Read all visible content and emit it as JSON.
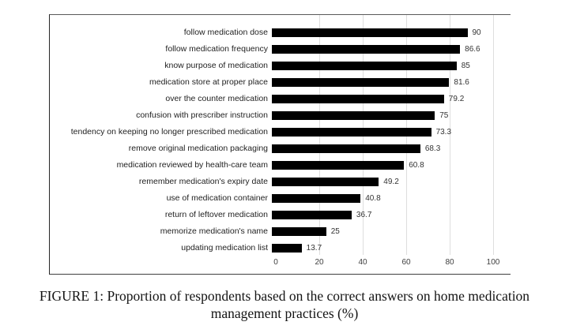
{
  "figure": {
    "caption_line1": "FIGURE 1: Proportion of respondents based on the correct answers on home medication",
    "caption_line2": "management practices (%)"
  },
  "chart_data": {
    "type": "bar",
    "orientation": "horizontal",
    "title": "",
    "xlabel": "",
    "ylabel": "",
    "categories": [
      "follow medication dose",
      "follow medication frequency",
      "know purpose of medication",
      "medication store at proper place",
      "over the counter medication",
      "confusion with prescriber instruction",
      "tendency on keeping no longer prescribed medication",
      "remove original medication packaging",
      "medication reviewed by health-care team",
      "remember medication's expiry date",
      "use of medication container",
      "return of leftover medication",
      "memorize medication's name",
      "updating medication list"
    ],
    "values": [
      90,
      86.6,
      85,
      81.6,
      79.2,
      75,
      73.3,
      68.3,
      60.8,
      49.2,
      40.8,
      36.7,
      25,
      13.7
    ],
    "x_ticks": [
      0,
      20,
      40,
      60,
      80,
      100
    ],
    "xlim": [
      0,
      100
    ],
    "grid": true,
    "legend": false,
    "bar_color": "#000000",
    "gridline_color": "#dedede"
  }
}
